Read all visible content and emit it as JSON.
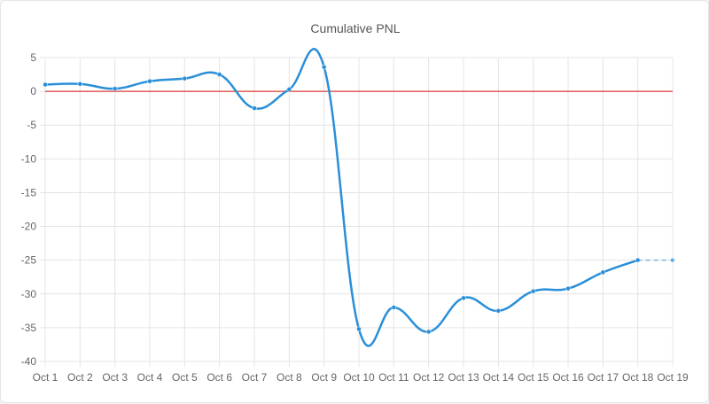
{
  "chart_data": {
    "type": "line",
    "title": "Cumulative PNL",
    "xlabel": "",
    "ylabel": "",
    "categories": [
      "Oct 1",
      "Oct 2",
      "Oct 3",
      "Oct 4",
      "Oct 5",
      "Oct 6",
      "Oct 7",
      "Oct 8",
      "Oct 9",
      "Oct 10",
      "Oct 11",
      "Oct 12",
      "Oct 13",
      "Oct 14",
      "Oct 15",
      "Oct 16",
      "Oct 17",
      "Oct 18",
      "Oct 19"
    ],
    "yticks": [
      5,
      0,
      -5,
      -10,
      -15,
      -20,
      -25,
      -30,
      -35,
      -40
    ],
    "ylim": [
      -40,
      5
    ],
    "grid": true,
    "legend": "none",
    "series": [
      {
        "values": [
          1.0,
          1.1,
          0.4,
          1.5,
          1.9,
          2.5,
          -2.5,
          0.3,
          3.6,
          -35.2,
          -32.0,
          -35.6,
          -30.6,
          -32.5,
          -29.6,
          -29.2,
          -26.8,
          -25.0,
          -25.0
        ],
        "color": "#2a8fd8",
        "projected_from_index": 17
      }
    ],
    "reference_lines": [
      {
        "value": 0,
        "color": "#e05a5a"
      }
    ]
  }
}
